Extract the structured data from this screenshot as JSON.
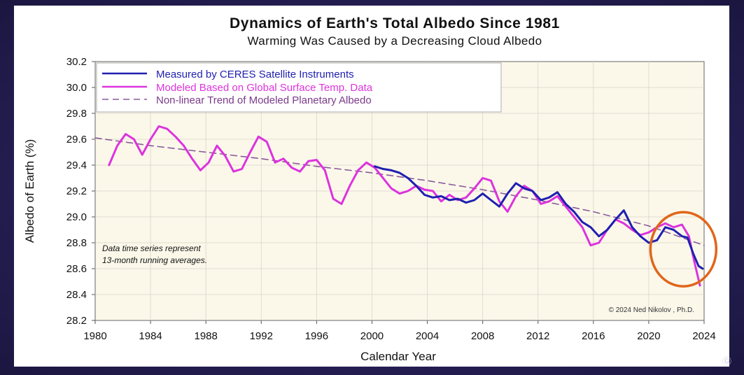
{
  "chart_data": {
    "type": "line",
    "title": "Dynamics of Earth's Total Albedo Since 1981",
    "subtitle": "Warming Was Caused by a Decreasing Cloud Albedo",
    "xlabel": "Calendar Year",
    "ylabel": "Albedo of Earth (%)",
    "xlim": [
      1980,
      2024
    ],
    "ylim": [
      28.2,
      30.2
    ],
    "x_ticks": [
      "1980",
      "1984",
      "1988",
      "1992",
      "1996",
      "2000",
      "2004",
      "2008",
      "2012",
      "2016",
      "2020",
      "2024"
    ],
    "y_ticks": [
      "28.2",
      "28.4",
      "28.6",
      "28.8",
      "29.0",
      "29.2",
      "29.4",
      "29.6",
      "29.8",
      "30.0",
      "30.2"
    ],
    "grid": true,
    "legend_position": "top-left",
    "note": [
      "Data time series represent",
      "13-month running averages."
    ],
    "credit": "© 2024 Ned Nikolov , Ph.D.",
    "highlight": {
      "shape": "ellipse",
      "color": "#e0661a",
      "x": 2022.5,
      "y": 28.75
    },
    "series": [
      {
        "name": "Measured by CERES Satellite Instruments",
        "color": "#1f1fb0",
        "style": "solid",
        "x": [
          2000.2,
          2000.8,
          2001.4,
          2002.0,
          2002.6,
          2003.2,
          2003.8,
          2004.4,
          2005.0,
          2005.6,
          2006.2,
          2006.8,
          2007.4,
          2008.0,
          2008.6,
          2009.2,
          2009.8,
          2010.4,
          2011.0,
          2011.6,
          2012.2,
          2012.8,
          2013.4,
          2014.0,
          2014.6,
          2015.2,
          2015.8,
          2016.4,
          2017.0,
          2017.6,
          2018.2,
          2018.8,
          2019.4,
          2020.0,
          2020.6,
          2021.2,
          2021.8,
          2022.4,
          2022.8,
          2023.2,
          2023.6,
          2023.9
        ],
        "y": [
          29.39,
          29.37,
          29.36,
          29.34,
          29.3,
          29.24,
          29.17,
          29.15,
          29.16,
          29.13,
          29.14,
          29.11,
          29.13,
          29.18,
          29.13,
          29.08,
          29.18,
          29.26,
          29.22,
          29.2,
          29.13,
          29.15,
          29.19,
          29.1,
          29.04,
          28.96,
          28.92,
          28.85,
          28.9,
          28.98,
          29.05,
          28.92,
          28.85,
          28.8,
          28.82,
          28.92,
          28.9,
          28.85,
          28.84,
          28.72,
          28.62,
          28.6
        ]
      },
      {
        "name": "Modeled Based on Global Surface Temp. Data",
        "color": "#dd33dd",
        "style": "solid",
        "x": [
          1981.0,
          1981.6,
          1982.2,
          1982.8,
          1983.4,
          1984.0,
          1984.6,
          1985.2,
          1985.8,
          1986.4,
          1987.0,
          1987.6,
          1988.2,
          1988.8,
          1989.4,
          1990.0,
          1990.6,
          1991.2,
          1991.8,
          1992.4,
          1993.0,
          1993.6,
          1994.2,
          1994.8,
          1995.4,
          1996.0,
          1996.6,
          1997.2,
          1997.8,
          1998.4,
          1999.0,
          1999.6,
          2000.2,
          2000.8,
          2001.4,
          2002.0,
          2002.6,
          2003.2,
          2003.8,
          2004.4,
          2005.0,
          2005.6,
          2006.2,
          2006.8,
          2007.4,
          2008.0,
          2008.6,
          2009.2,
          2009.8,
          2010.4,
          2011.0,
          2011.6,
          2012.2,
          2012.8,
          2013.4,
          2014.0,
          2014.6,
          2015.2,
          2015.8,
          2016.4,
          2017.0,
          2017.6,
          2018.2,
          2018.8,
          2019.4,
          2020.0,
          2020.6,
          2021.2,
          2021.8,
          2022.4,
          2022.9,
          2023.3,
          2023.7
        ],
        "y": [
          29.4,
          29.55,
          29.64,
          29.6,
          29.48,
          29.6,
          29.7,
          29.68,
          29.62,
          29.55,
          29.45,
          29.36,
          29.42,
          29.55,
          29.47,
          29.35,
          29.37,
          29.5,
          29.62,
          29.58,
          29.42,
          29.45,
          29.38,
          29.35,
          29.43,
          29.44,
          29.36,
          29.14,
          29.1,
          29.24,
          29.36,
          29.42,
          29.38,
          29.3,
          29.22,
          29.18,
          29.2,
          29.24,
          29.21,
          29.2,
          29.12,
          29.17,
          29.13,
          29.15,
          29.22,
          29.3,
          29.28,
          29.12,
          29.04,
          29.16,
          29.24,
          29.2,
          29.1,
          29.12,
          29.16,
          29.08,
          29.0,
          28.92,
          28.78,
          28.8,
          28.9,
          28.98,
          28.95,
          28.9,
          28.86,
          28.88,
          28.92,
          28.95,
          28.92,
          28.94,
          28.85,
          28.65,
          28.47
        ]
      },
      {
        "name": "Non-linear Trend of Modeled Planetary Albedo",
        "color": "#8a5a9a",
        "style": "dashed",
        "x": [
          1980,
          1984,
          1988,
          1992,
          1996,
          2000,
          2004,
          2008,
          2012,
          2016,
          2020,
          2024
        ],
        "y": [
          29.61,
          29.55,
          29.5,
          29.45,
          29.39,
          29.34,
          29.28,
          29.21,
          29.13,
          29.04,
          28.93,
          28.78
        ]
      }
    ]
  },
  "watermark": "Ⓖ"
}
